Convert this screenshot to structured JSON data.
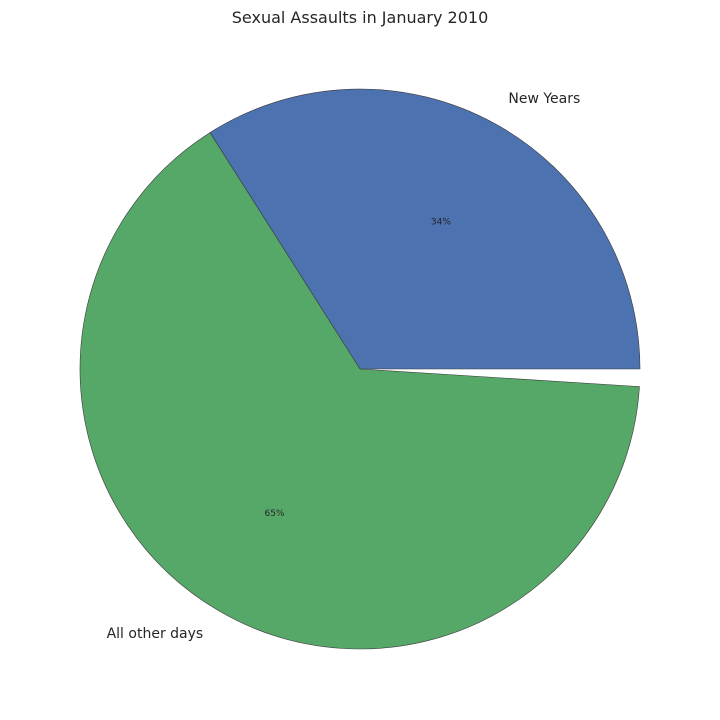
{
  "chart_data": {
    "type": "pie",
    "title": "Sexual Assaults in January 2010",
    "slices": [
      {
        "label": "New Years",
        "value": 34,
        "pct_label": "34%",
        "color": "#4c72b0"
      },
      {
        "label": "All other days",
        "value": 65,
        "pct_label": "65%",
        "color": "#55a868"
      }
    ],
    "start_angle_deg": 0,
    "direction": "counterclockwise",
    "legend": "none",
    "grid": false
  }
}
